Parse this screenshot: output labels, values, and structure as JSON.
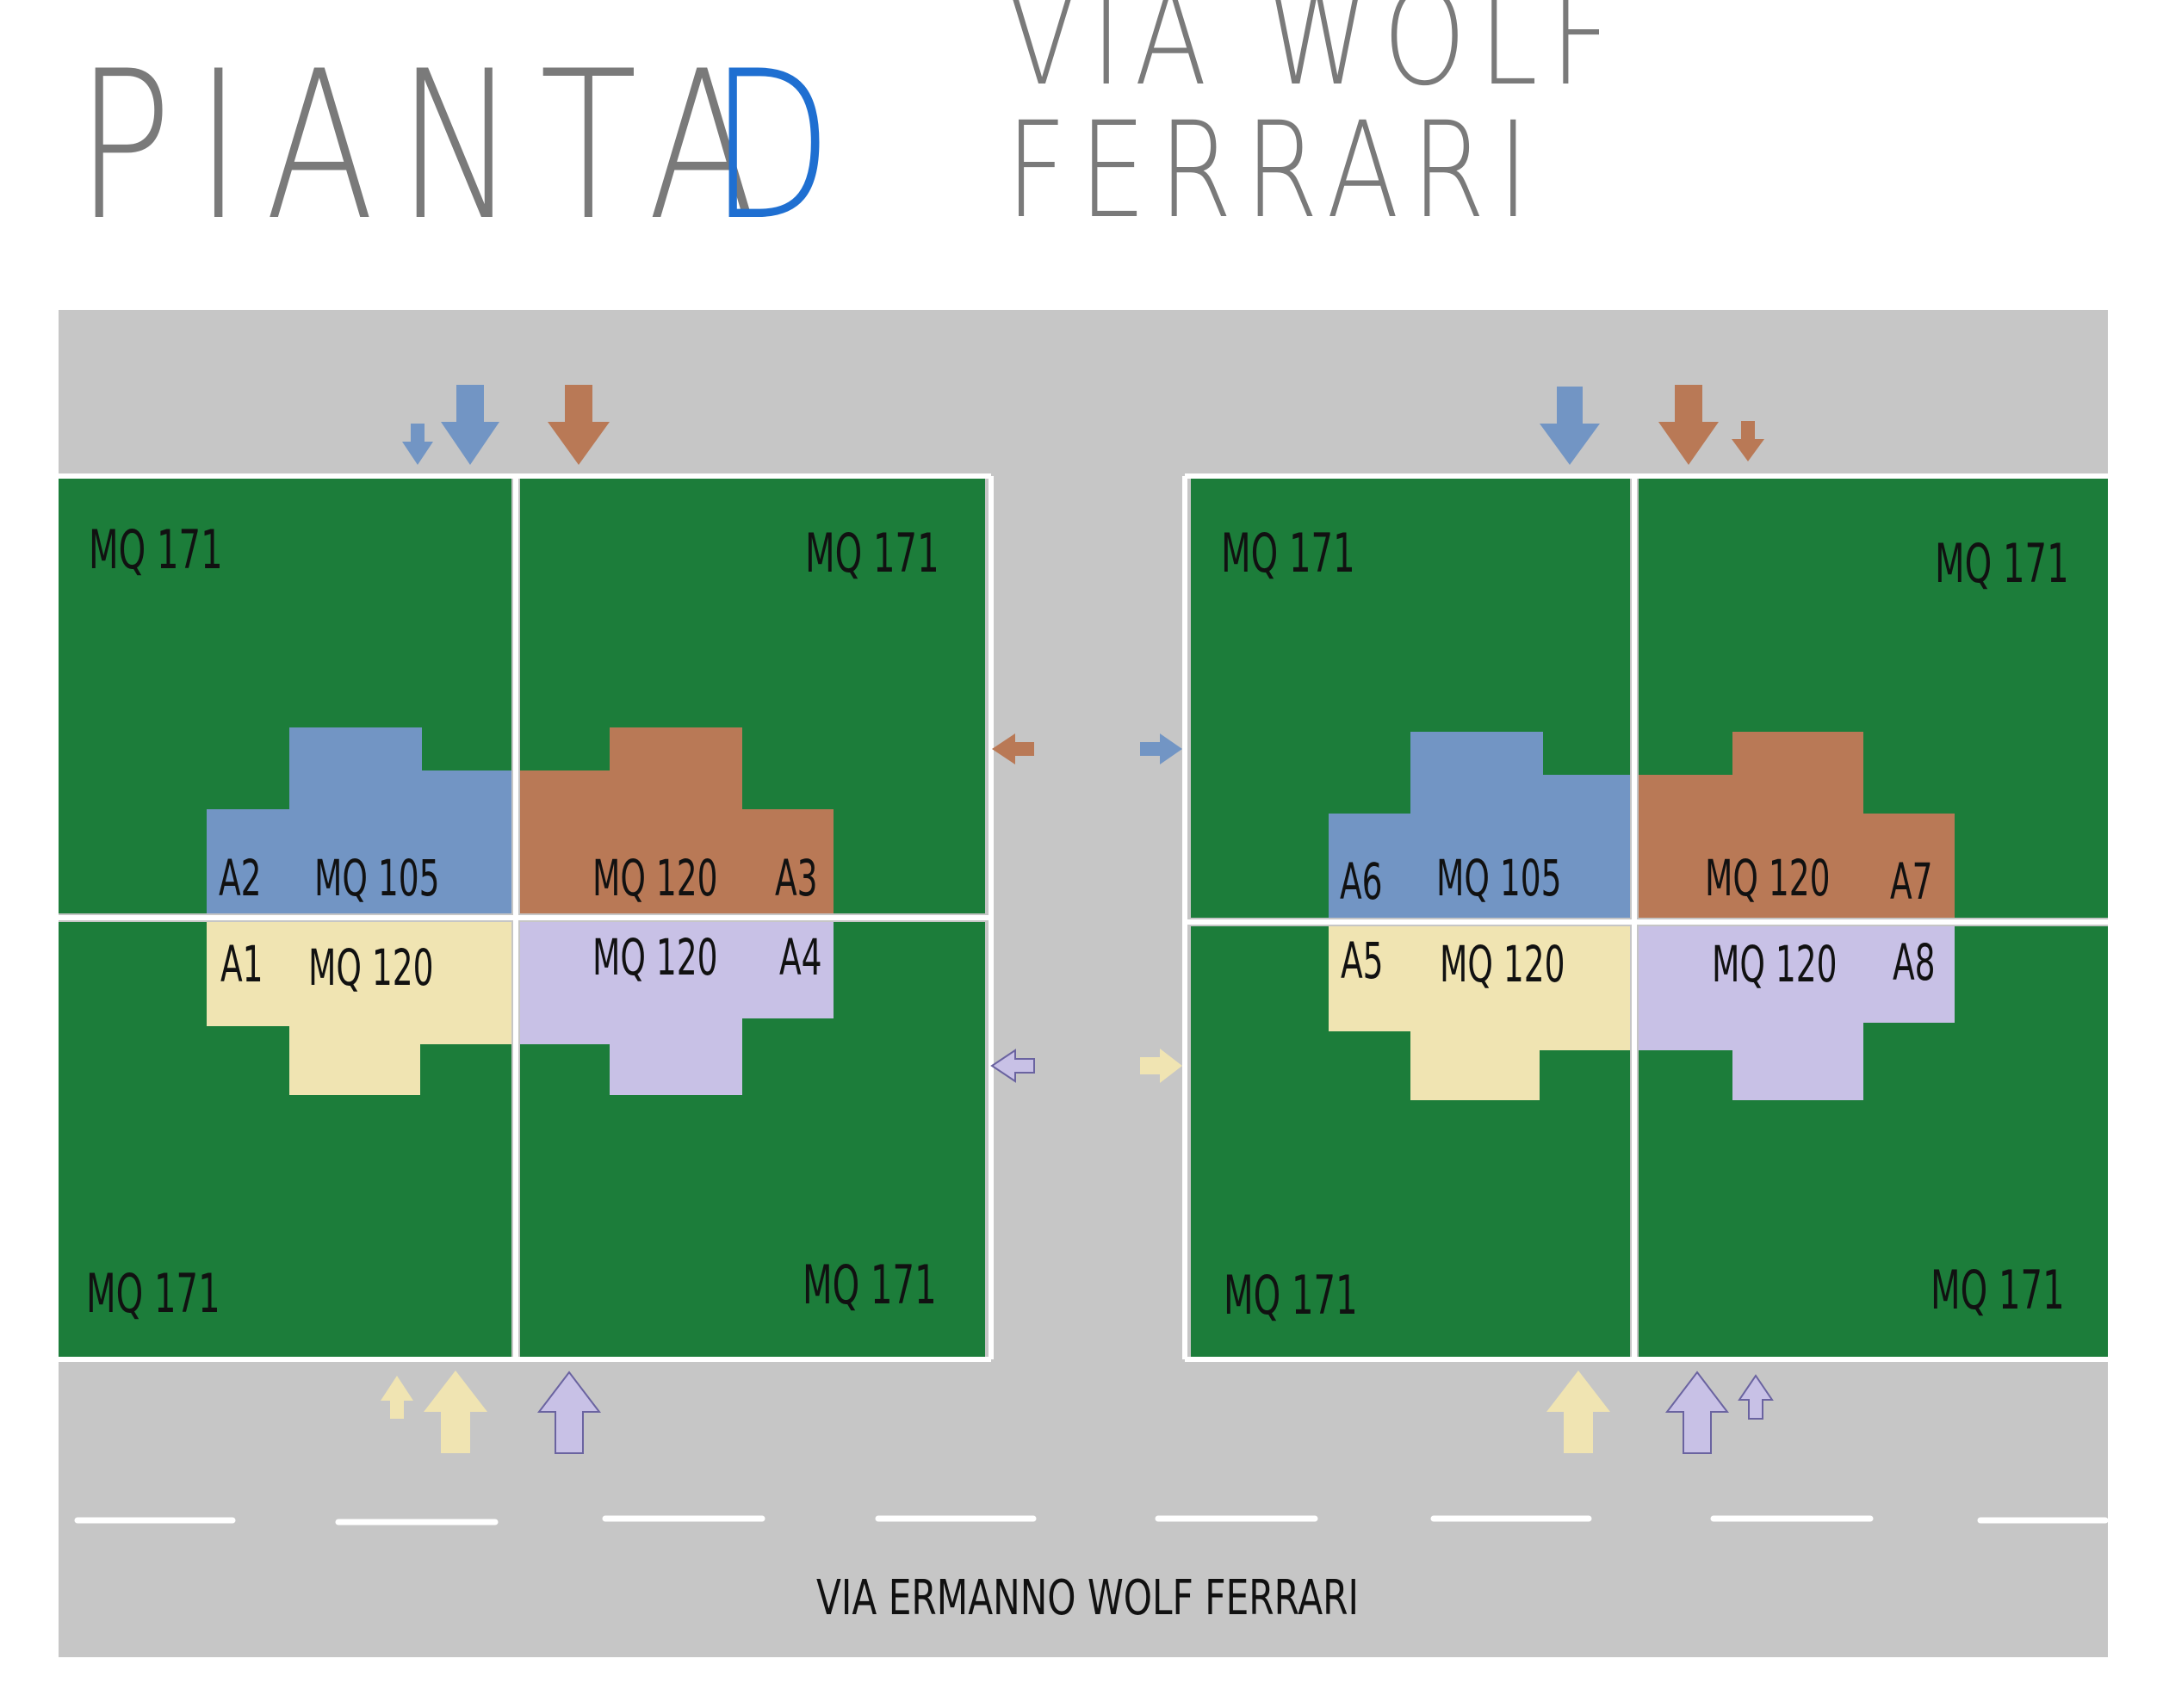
{
  "title": {
    "prefix": "PIANTA",
    "letter": "D",
    "subtitle": "VIA WOLF FERRARI"
  },
  "colors": {
    "road": "#c6c6c6",
    "lawn": "#1c7d3a",
    "blue": "#7295c4",
    "brown": "#b97956",
    "cream": "#f0e4b2",
    "lilac": "#c8c1e6",
    "lane": "#ffffff",
    "title_gray": "#7a7a7a",
    "title_blue": "#1f6fd1"
  },
  "street_name": "VIA ERMANNO WOLF FERRARI",
  "lots": [
    "MQ 171",
    "MQ 171",
    "MQ 171",
    "MQ 171",
    "MQ 171",
    "MQ 171",
    "MQ 171",
    "MQ 171"
  ],
  "units": [
    {
      "id": "A2",
      "area": "MQ 105"
    },
    {
      "id": "A3",
      "area": "MQ 120"
    },
    {
      "id": "A1",
      "area": "MQ 120"
    },
    {
      "id": "A4",
      "area": "MQ 120"
    },
    {
      "id": "A6",
      "area": "MQ 105"
    },
    {
      "id": "A7",
      "area": "MQ 120"
    },
    {
      "id": "A5",
      "area": "MQ 120"
    },
    {
      "id": "A8",
      "area": "MQ 120"
    }
  ]
}
